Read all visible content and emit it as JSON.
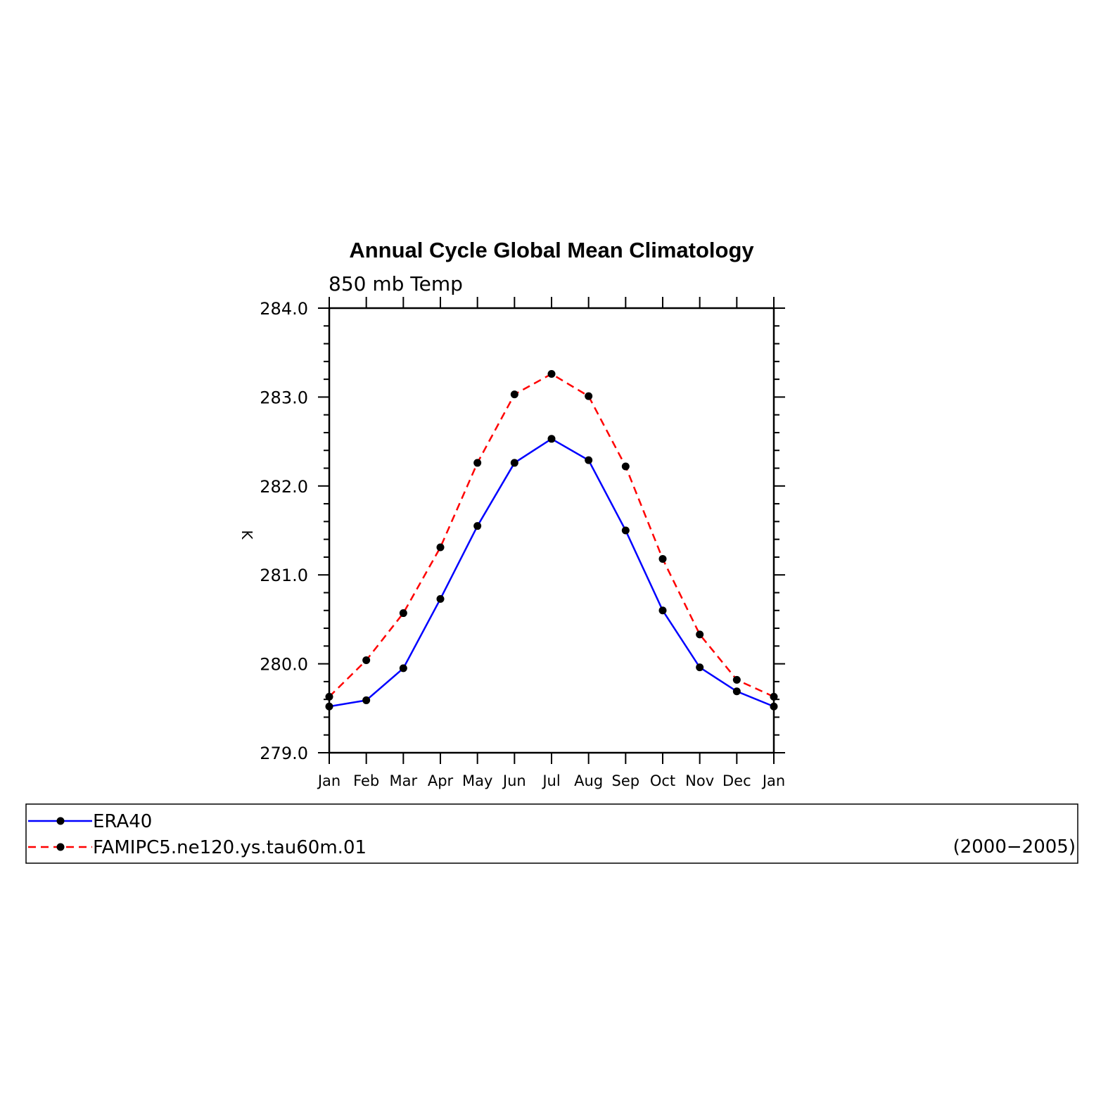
{
  "chart_data": {
    "type": "line",
    "title": "Annual Cycle Global Mean Climatology",
    "subtitle": "850 mb Temp",
    "xlabel": "",
    "ylabel": "K",
    "categories": [
      "Jan",
      "Feb",
      "Mar",
      "Apr",
      "May",
      "Jun",
      "Jul",
      "Aug",
      "Sep",
      "Oct",
      "Nov",
      "Dec",
      "Jan"
    ],
    "ylim": [
      279.0,
      284.0
    ],
    "yticks": [
      "279.0",
      "280.0",
      "281.0",
      "282.0",
      "283.0",
      "284.0"
    ],
    "grid": false,
    "legend_position": "bottom",
    "period": "(2000−2005)",
    "series": [
      {
        "name": "ERA40",
        "color": "#0000ff",
        "dash": "solid",
        "values": [
          279.52,
          279.59,
          279.95,
          280.73,
          281.55,
          282.26,
          282.53,
          282.29,
          281.5,
          280.6,
          279.96,
          279.69,
          279.52
        ]
      },
      {
        "name": "FAMIPC5.ne120.ys.tau60m.01",
        "color": "#ff0000",
        "dash": "dashed",
        "values": [
          279.63,
          280.04,
          280.57,
          281.31,
          282.26,
          283.03,
          283.26,
          283.01,
          282.22,
          281.18,
          280.33,
          279.82,
          279.63
        ]
      }
    ]
  }
}
